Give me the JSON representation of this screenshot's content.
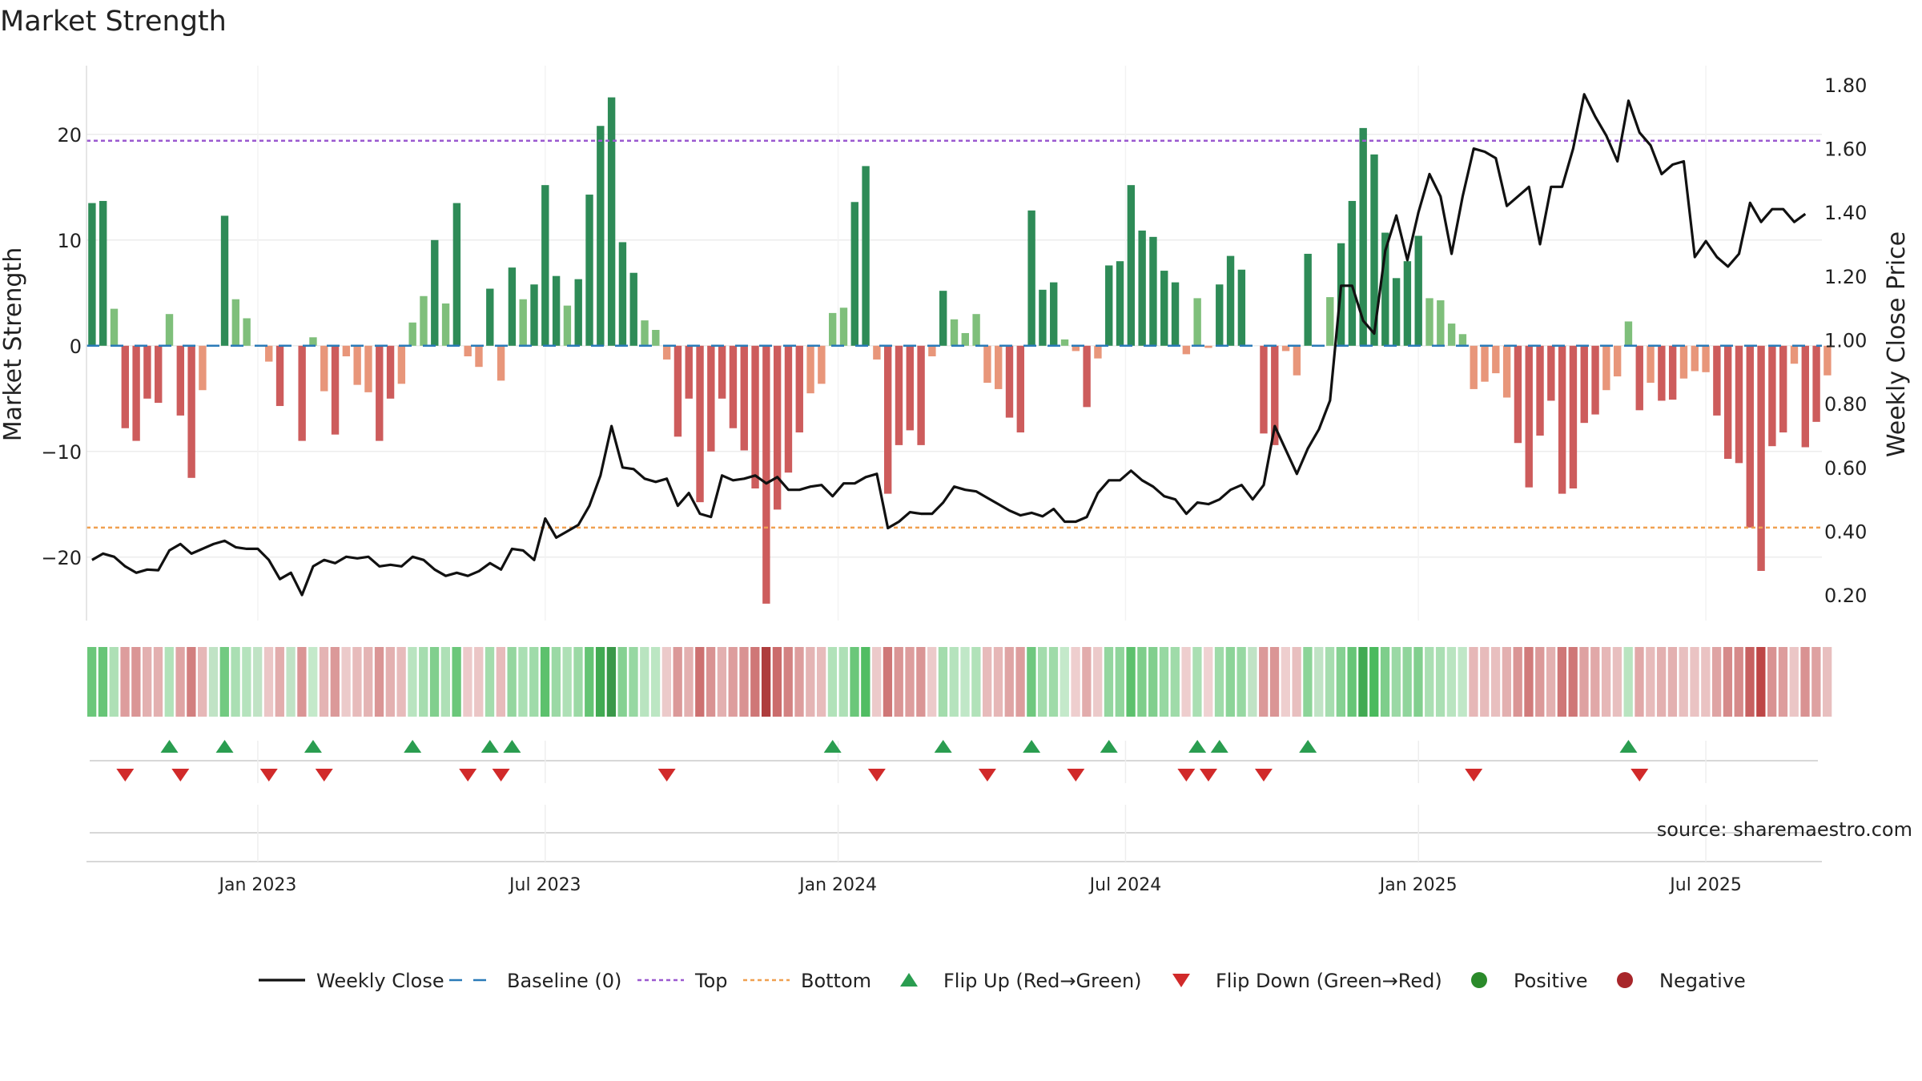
{
  "chart_data": {
    "type": "bar",
    "title": "Market Strength",
    "ylabel_left": "Market Strength",
    "ylabel_right": "Weekly Close Price",
    "ylim_left": [
      -26,
      26.5
    ],
    "ylim_right": [
      0.12,
      1.86
    ],
    "yticks_left": [
      -20,
      -10,
      0,
      10,
      20
    ],
    "yticks_left_labels": [
      "−20",
      "−10",
      "0",
      "10",
      "20"
    ],
    "yticks_right": [
      0.2,
      0.4,
      0.6,
      0.8,
      1.0,
      1.2,
      1.4,
      1.6,
      1.8
    ],
    "yticks_right_labels": [
      "0.20",
      "0.40",
      "0.60",
      "0.80",
      "1.00",
      "1.20",
      "1.40",
      "1.60",
      "1.80"
    ],
    "x_ticks": [
      {
        "label": "Jan 2023",
        "week": 15
      },
      {
        "label": "Jul 2023",
        "week": 41
      },
      {
        "label": "Jan 2024",
        "week": 67.5
      },
      {
        "label": "Jul 2024",
        "week": 93.5
      },
      {
        "label": "Jan 2025",
        "week": 120
      },
      {
        "label": "Jul 2025",
        "week": 146
      }
    ],
    "x_range": [
      -0.5,
      156.5
    ],
    "top_threshold": 19.4,
    "bottom_threshold": -17.2,
    "grid": true,
    "legend_position": "bottom",
    "legend": [
      "Weekly Close",
      "Baseline (0)",
      "Top",
      "Bottom",
      "Flip Up (Red→Green)",
      "Flip Down (Green→Red)",
      "Positive",
      "Negative"
    ],
    "source_note": "source: sharemaestro.com",
    "strength_values": [
      13.5,
      13.7,
      3.5,
      -7.8,
      -9.0,
      -5.0,
      -5.4,
      3.0,
      -6.6,
      -12.5,
      -4.2,
      0,
      12.3,
      4.4,
      2.6,
      0,
      -1.5,
      -5.7,
      0,
      -9.0,
      0.8,
      -4.3,
      -8.4,
      -1.0,
      -3.7,
      -4.4,
      -9.0,
      -5.0,
      -3.6,
      2.2,
      4.7,
      10.0,
      4.0,
      13.5,
      -1.0,
      -2.0,
      5.4,
      -3.3,
      7.4,
      4.4,
      5.8,
      15.2,
      6.6,
      3.8,
      6.3,
      14.3,
      20.8,
      23.5,
      9.8,
      6.9,
      2.4,
      1.5,
      -1.3,
      -8.6,
      -5.0,
      -14.8,
      -10.0,
      -5.0,
      -7.8,
      -9.9,
      -13.5,
      -24.4,
      -15.5,
      -12.0,
      -8.2,
      -4.5,
      -3.6,
      3.1,
      3.6,
      13.6,
      17.0,
      -1.3,
      -14.0,
      -9.4,
      -8.0,
      -9.4,
      -1.0,
      5.2,
      2.5,
      1.2,
      3.0,
      -3.5,
      -4.1,
      -6.8,
      -8.2,
      12.8,
      5.3,
      6.0,
      0.6,
      -0.5,
      -5.8,
      -1.2,
      7.6,
      8.0,
      15.2,
      10.9,
      10.3,
      7.1,
      6.0,
      -0.8,
      4.5,
      -0.2,
      5.8,
      8.5,
      7.2,
      0,
      -8.3,
      -9.4,
      -0.5,
      -2.8,
      8.7,
      0,
      4.6,
      9.7,
      13.7,
      20.6,
      18.1,
      10.7,
      6.4,
      8.0,
      10.4,
      4.5,
      4.3,
      2.1,
      1.1,
      -4.1,
      -3.4,
      -2.6,
      -4.9,
      -9.2,
      -13.4,
      -8.5,
      -5.2,
      -14.0,
      -13.5,
      -7.3,
      -6.5,
      -4.2,
      -2.9,
      2.3,
      -6.1,
      -3.5,
      -5.2,
      -5.1,
      -3.1,
      -2.4,
      -2.5,
      -6.6,
      -10.7,
      -11.1,
      -17.2,
      -21.3,
      -9.5,
      -8.2,
      -1.7,
      -9.6,
      -7.2,
      -2.8
    ],
    "close_values": [
      0.31,
      0.33,
      0.32,
      0.29,
      0.27,
      0.28,
      0.278,
      0.34,
      0.36,
      0.33,
      0.345,
      0.36,
      0.37,
      0.35,
      0.345,
      0.345,
      0.31,
      0.25,
      0.27,
      0.2,
      0.29,
      0.31,
      0.3,
      0.32,
      0.315,
      0.32,
      0.29,
      0.295,
      0.29,
      0.32,
      0.31,
      0.28,
      0.26,
      0.27,
      0.26,
      0.275,
      0.3,
      0.28,
      0.345,
      0.34,
      0.31,
      0.44,
      0.38,
      0.4,
      0.42,
      0.48,
      0.575,
      0.73,
      0.6,
      0.595,
      0.565,
      0.555,
      0.565,
      0.48,
      0.52,
      0.455,
      0.445,
      0.575,
      0.56,
      0.565,
      0.575,
      0.55,
      0.57,
      0.53,
      0.53,
      0.54,
      0.545,
      0.51,
      0.55,
      0.55,
      0.57,
      0.58,
      0.41,
      0.43,
      0.46,
      0.455,
      0.455,
      0.49,
      0.54,
      0.53,
      0.525,
      0.505,
      0.485,
      0.465,
      0.45,
      0.458,
      0.447,
      0.47,
      0.43,
      0.43,
      0.445,
      0.52,
      0.56,
      0.56,
      0.59,
      0.56,
      0.54,
      0.51,
      0.5,
      0.455,
      0.49,
      0.485,
      0.5,
      0.53,
      0.545,
      0.5,
      0.545,
      0.73,
      0.655,
      0.58,
      0.66,
      0.72,
      0.81,
      1.17,
      1.17,
      1.06,
      1.02,
      1.28,
      1.39,
      1.25,
      1.4,
      1.52,
      1.45,
      1.27,
      1.45,
      1.6,
      1.59,
      1.57,
      1.42,
      1.45,
      1.48,
      1.3,
      1.48,
      1.48,
      1.6,
      1.77,
      1.7,
      1.64,
      1.56,
      1.75,
      1.65,
      1.61,
      1.52,
      1.55,
      1.56,
      1.26,
      1.31,
      1.26,
      1.23,
      1.27,
      1.43,
      1.37,
      1.41,
      1.41,
      1.37,
      1.395
    ]
  }
}
